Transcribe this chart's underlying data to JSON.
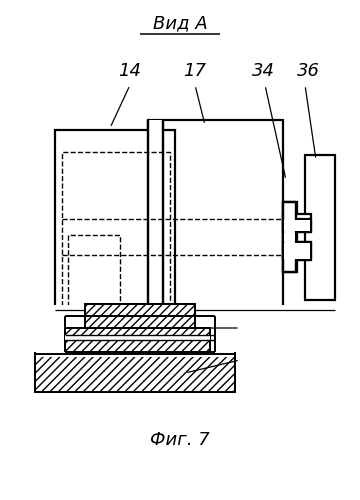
{
  "bg_color": "#ffffff",
  "line_color": "#000000",
  "title_top": "Вид А",
  "title_bottom": "Фиг. 7",
  "lw_main": 1.6,
  "lw_dash": 1.0,
  "lw_thin": 0.9
}
